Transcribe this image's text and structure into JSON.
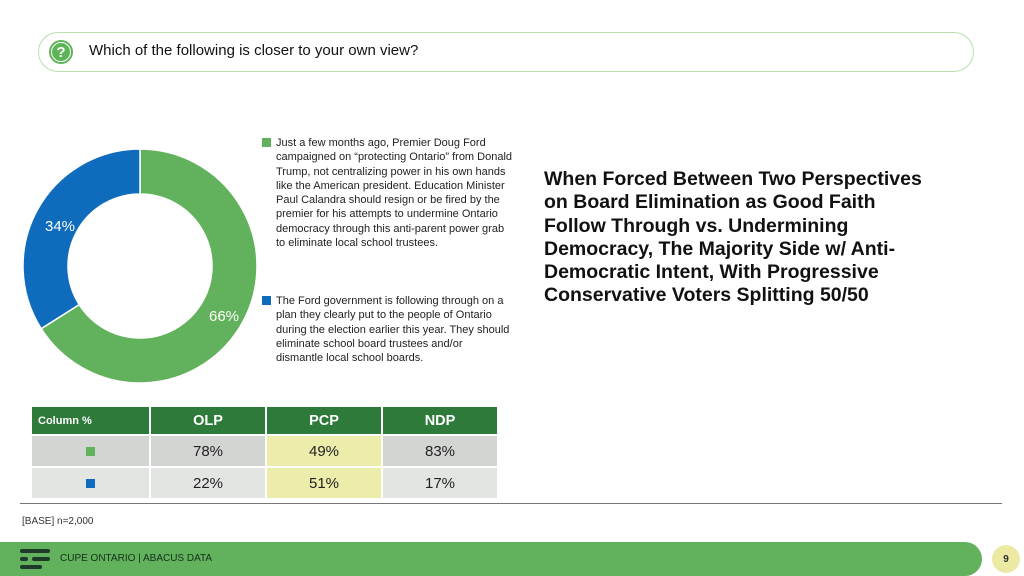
{
  "question": {
    "icon": "question-icon",
    "text": "Which of the following is closer to your own view?"
  },
  "colors": {
    "green": "#62b15c",
    "blue": "#0f6cbd",
    "header_green": "#2d7a3a",
    "highlight": "#ecedaa"
  },
  "chart_data": {
    "type": "pie",
    "style": "donut",
    "slices": [
      {
        "label": "Just a few months ago, Premier Doug Ford campaigned on “protecting Ontario” from Donald Trump, not centralizing power in his own hands like the American president. Education Minister Paul Calandra should resign or be fired by the premier for his attempts to undermine Ontario democracy through this anti-parent power grab to eliminate local school trustees.",
        "value": 66,
        "display": "66%",
        "color": "#62b15c"
      },
      {
        "label": "The Ford government is following through on a plan they clearly put to the people of Ontario during the election earlier this year. They should eliminate school board trustees and/or dismantle local school boards.",
        "value": 34,
        "display": "34%",
        "color": "#0f6cbd"
      }
    ],
    "legend_position": "right"
  },
  "headline": "When Forced Between Two Perspectives on Board Elimination as Good Faith Follow Through vs. Undermining Democracy, The Majority Side w/ Anti-Democratic Intent, With Progressive Conservative Voters Splitting 50/50",
  "table": {
    "row_header": "Column %",
    "columns": [
      "OLP",
      "PCP",
      "NDP"
    ],
    "rows": [
      {
        "swatch_color": "#62b15c",
        "values": [
          "78%",
          "49%",
          "83%"
        ]
      },
      {
        "swatch_color": "#0f6cbd",
        "values": [
          "22%",
          "51%",
          "17%"
        ]
      }
    ]
  },
  "base_note": "[BASE] n=2,000",
  "footer": {
    "brand": "CUPE ONTARIO | ABACUS DATA",
    "page_number": "9"
  }
}
